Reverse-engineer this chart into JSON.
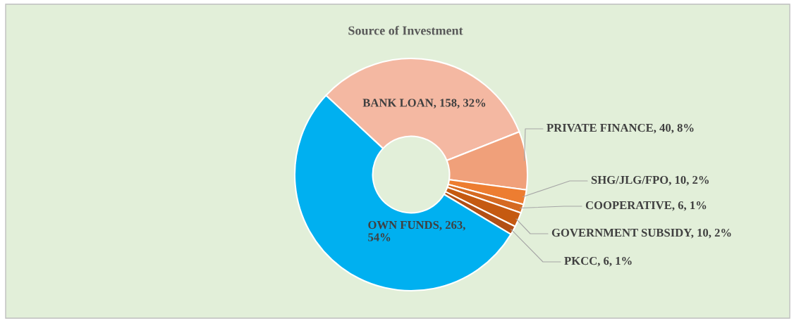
{
  "chart_data": {
    "type": "donut",
    "title": "Source of Investment",
    "categories": [
      "BANK LOAN",
      "PRIVATE FINANCE",
      "SHG/JLG/FPO",
      "COOPERATIVE",
      "GOVERNMENT SUBSIDY",
      "PKCC",
      "OWN FUNDS"
    ],
    "values": [
      158,
      40,
      10,
      6,
      10,
      6,
      263
    ],
    "colors": [
      "#f4b8a2",
      "#f0a07a",
      "#ed7d31",
      "#d56a22",
      "#c55a11",
      "#b24f15",
      "#00b0f0"
    ],
    "value_labels": [
      "158, 32%",
      "40, 8%",
      "10, 2%",
      "6, 1%",
      "10, 2%",
      "6, 1%",
      "263, 54%"
    ],
    "legend": false
  }
}
